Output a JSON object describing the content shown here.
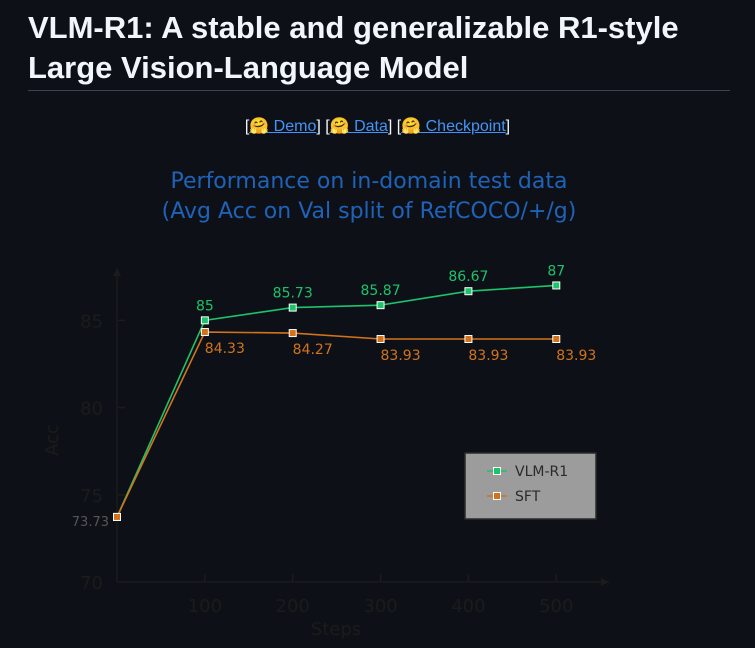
{
  "header": {
    "title": "VLM-R1: A stable and generalizable R1-style Large Vision-Language Model"
  },
  "links": [
    {
      "before": "[",
      "text": "🤗 Demo",
      "after": "]"
    },
    {
      "before": "[",
      "text": "🤗 Data",
      "after": "]"
    },
    {
      "before": "[",
      "text": "🤗 Checkpoint",
      "after": "]"
    }
  ],
  "chart_data": {
    "type": "line",
    "title": "Performance on in-domain test data",
    "subtitle": "(Avg Acc on Val split of RefCOCO/+/g)",
    "x_label": "Steps",
    "y_label": "Acc",
    "x": [
      0,
      100,
      200,
      300,
      400,
      500
    ],
    "series": [
      {
        "name": "VLM-R1",
        "color": "#1ec26a",
        "values": [
          73.73,
          85,
          85.73,
          85.87,
          86.67,
          87
        ]
      },
      {
        "name": "SFT",
        "color": "#d2731c",
        "values": [
          73.73,
          84.33,
          84.27,
          83.93,
          83.93,
          83.93
        ]
      }
    ],
    "xlim": [
      0,
      560
    ],
    "xticks": [
      100,
      200,
      300,
      400,
      500
    ],
    "ylim": [
      70,
      88
    ],
    "yticks": [
      70,
      75,
      80,
      85
    ],
    "legend": "lower right",
    "grid": false
  }
}
